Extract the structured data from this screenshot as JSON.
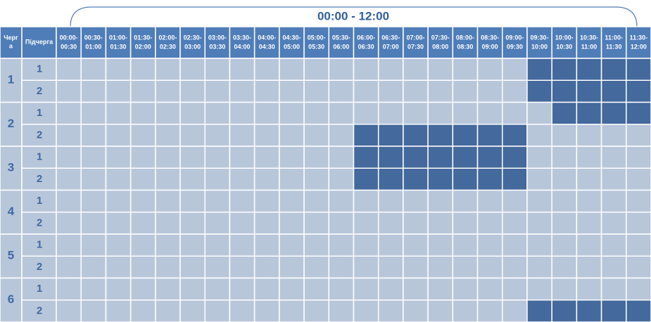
{
  "header": {
    "title": "00:00 - 12:00",
    "queue": [
      "Черг",
      "а"
    ],
    "subqueue": "Підчерга",
    "slots": [
      [
        "00:00-",
        "00:30"
      ],
      [
        "00:30-",
        "01:00"
      ],
      [
        "01:00-",
        "01:30"
      ],
      [
        "01:30-",
        "02:00"
      ],
      [
        "02:00-",
        "02:30"
      ],
      [
        "02:30-",
        "03:00"
      ],
      [
        "03:00-",
        "03:30"
      ],
      [
        "03:30-",
        "04:00"
      ],
      [
        "04:00-",
        "04:30"
      ],
      [
        "04:30-",
        "05:00"
      ],
      [
        "05:00-",
        "05:30"
      ],
      [
        "05:30-",
        "06:00"
      ],
      [
        "06:00-",
        "06:30"
      ],
      [
        "06:30-",
        "07:00"
      ],
      [
        "07:00-",
        "07:30"
      ],
      [
        "07:30-",
        "08:00"
      ],
      [
        "08:00-",
        "08:30"
      ],
      [
        "08:30-",
        "09:00"
      ],
      [
        "09:00-",
        "09:30"
      ],
      [
        "09:30-",
        "10:00"
      ],
      [
        "10:00-",
        "10:30"
      ],
      [
        "10:30-",
        "11:00"
      ],
      [
        "11:00-",
        "11:30"
      ],
      [
        "11:30-",
        "12:00"
      ]
    ]
  },
  "queues": [
    {
      "label": "1",
      "subqueues": [
        {
          "label": "1",
          "outage": [
            0,
            0,
            0,
            0,
            0,
            0,
            0,
            0,
            0,
            0,
            0,
            0,
            0,
            0,
            0,
            0,
            0,
            0,
            0,
            1,
            1,
            1,
            1,
            1
          ]
        },
        {
          "label": "2",
          "outage": [
            0,
            0,
            0,
            0,
            0,
            0,
            0,
            0,
            0,
            0,
            0,
            0,
            0,
            0,
            0,
            0,
            0,
            0,
            0,
            1,
            1,
            1,
            1,
            1
          ]
        }
      ]
    },
    {
      "label": "2",
      "subqueues": [
        {
          "label": "1",
          "outage": [
            0,
            0,
            0,
            0,
            0,
            0,
            0,
            0,
            0,
            0,
            0,
            0,
            0,
            0,
            0,
            0,
            0,
            0,
            0,
            0,
            1,
            1,
            1,
            1
          ]
        },
        {
          "label": "2",
          "outage": [
            0,
            0,
            0,
            0,
            0,
            0,
            0,
            0,
            0,
            0,
            0,
            0,
            1,
            1,
            1,
            1,
            1,
            1,
            1,
            0,
            0,
            0,
            0,
            0
          ]
        }
      ]
    },
    {
      "label": "3",
      "subqueues": [
        {
          "label": "1",
          "outage": [
            0,
            0,
            0,
            0,
            0,
            0,
            0,
            0,
            0,
            0,
            0,
            0,
            1,
            1,
            1,
            1,
            1,
            1,
            1,
            0,
            0,
            0,
            0,
            0
          ]
        },
        {
          "label": "2",
          "outage": [
            0,
            0,
            0,
            0,
            0,
            0,
            0,
            0,
            0,
            0,
            0,
            0,
            1,
            1,
            1,
            1,
            1,
            1,
            1,
            0,
            0,
            0,
            0,
            0
          ]
        }
      ]
    },
    {
      "label": "4",
      "subqueues": [
        {
          "label": "1",
          "outage": [
            0,
            0,
            0,
            0,
            0,
            0,
            0,
            0,
            0,
            0,
            0,
            0,
            0,
            0,
            0,
            0,
            0,
            0,
            0,
            0,
            0,
            0,
            0,
            0
          ]
        },
        {
          "label": "2",
          "outage": [
            0,
            0,
            0,
            0,
            0,
            0,
            0,
            0,
            0,
            0,
            0,
            0,
            0,
            0,
            0,
            0,
            0,
            0,
            0,
            0,
            0,
            0,
            0,
            0
          ]
        }
      ]
    },
    {
      "label": "5",
      "subqueues": [
        {
          "label": "1",
          "outage": [
            0,
            0,
            0,
            0,
            0,
            0,
            0,
            0,
            0,
            0,
            0,
            0,
            0,
            0,
            0,
            0,
            0,
            0,
            0,
            0,
            0,
            0,
            0,
            0
          ]
        },
        {
          "label": "2",
          "outage": [
            0,
            0,
            0,
            0,
            0,
            0,
            0,
            0,
            0,
            0,
            0,
            0,
            0,
            0,
            0,
            0,
            0,
            0,
            0,
            0,
            0,
            0,
            0,
            0
          ]
        }
      ]
    },
    {
      "label": "6",
      "subqueues": [
        {
          "label": "1",
          "outage": [
            0,
            0,
            0,
            0,
            0,
            0,
            0,
            0,
            0,
            0,
            0,
            0,
            0,
            0,
            0,
            0,
            0,
            0,
            0,
            0,
            0,
            0,
            0,
            0
          ]
        },
        {
          "label": "2",
          "outage": [
            0,
            0,
            0,
            0,
            0,
            0,
            0,
            0,
            0,
            0,
            0,
            0,
            0,
            0,
            0,
            0,
            0,
            0,
            0,
            1,
            1,
            1,
            1,
            1
          ]
        }
      ]
    }
  ]
}
